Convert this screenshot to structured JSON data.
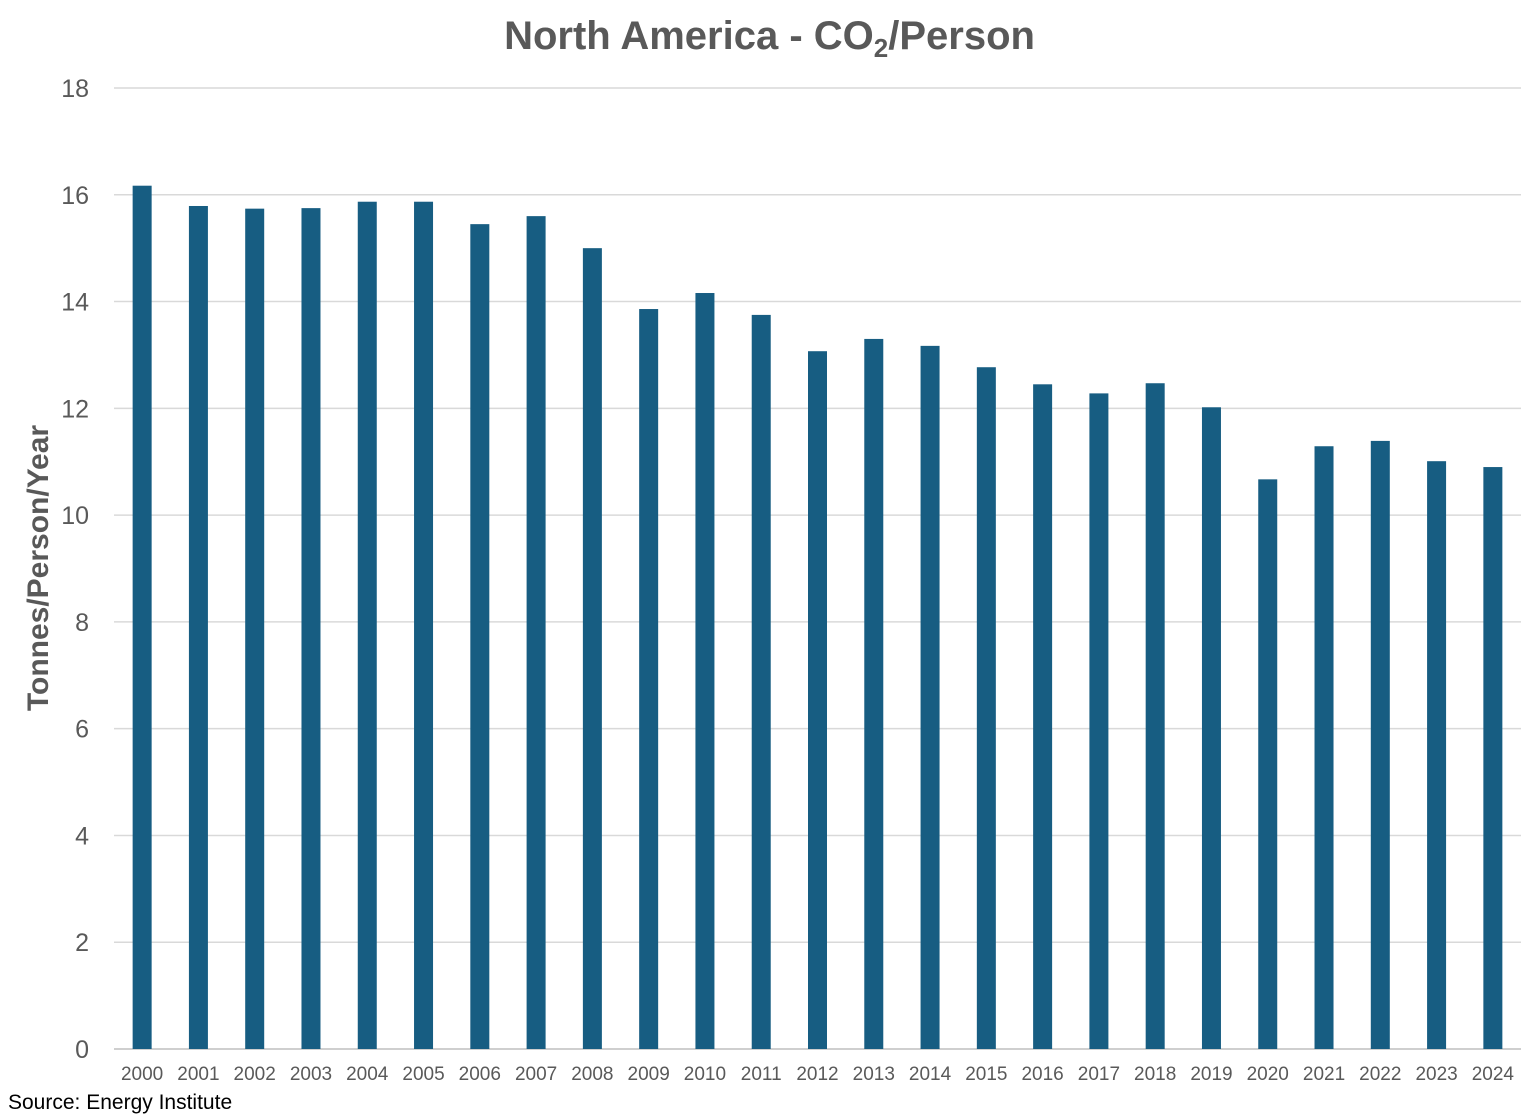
{
  "title": {
    "main": "North America - CO",
    "subscript": "2",
    "suffix": "/Person"
  },
  "source": "Source: Energy Institute",
  "colors": {
    "bar": "#175d82",
    "grid": "#d9d9d9",
    "axis_text": "#595959",
    "title": "#595959"
  },
  "chart_data": {
    "type": "bar",
    "title": "North America - CO2/Person",
    "xlabel": "",
    "ylabel": "Tonnes/Person/Year",
    "ylim": [
      0,
      18
    ],
    "yticks": [
      0,
      2,
      4,
      6,
      8,
      10,
      12,
      14,
      16,
      18
    ],
    "grid": true,
    "legend": "none",
    "categories": [
      "2000",
      "2001",
      "2002",
      "2003",
      "2004",
      "2005",
      "2006",
      "2007",
      "2008",
      "2009",
      "2010",
      "2011",
      "2012",
      "2013",
      "2014",
      "2015",
      "2016",
      "2017",
      "2018",
      "2019",
      "2020",
      "2021",
      "2022",
      "2023",
      "2024"
    ],
    "series": [
      {
        "name": "CO2 per person",
        "values": [
          16.17,
          15.79,
          15.74,
          15.75,
          15.87,
          15.87,
          15.45,
          15.6,
          15.0,
          13.86,
          14.16,
          13.75,
          13.07,
          13.3,
          13.17,
          12.77,
          12.45,
          12.28,
          12.47,
          12.02,
          10.67,
          11.29,
          11.39,
          11.01,
          10.9
        ]
      }
    ]
  }
}
